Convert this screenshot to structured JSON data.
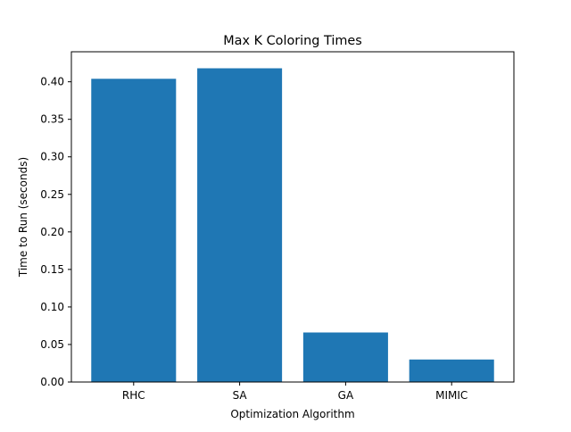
{
  "chart_data": {
    "type": "bar",
    "title": "Max K Coloring Times",
    "xlabel": "Optimization Algorithm",
    "ylabel": "Time to Run (seconds)",
    "categories": [
      "RHC",
      "SA",
      "GA",
      "MIMIC"
    ],
    "values": [
      0.404,
      0.418,
      0.066,
      0.03
    ],
    "ylim": [
      0,
      0.44
    ],
    "yticks": [
      0.0,
      0.05,
      0.1,
      0.15,
      0.2,
      0.25,
      0.3,
      0.35,
      0.4
    ],
    "ytick_labels": [
      "0.00",
      "0.05",
      "0.10",
      "0.15",
      "0.20",
      "0.25",
      "0.30",
      "0.35",
      "0.40"
    ],
    "grid": false,
    "legend": "none",
    "bar_color": "#1f77b4"
  }
}
